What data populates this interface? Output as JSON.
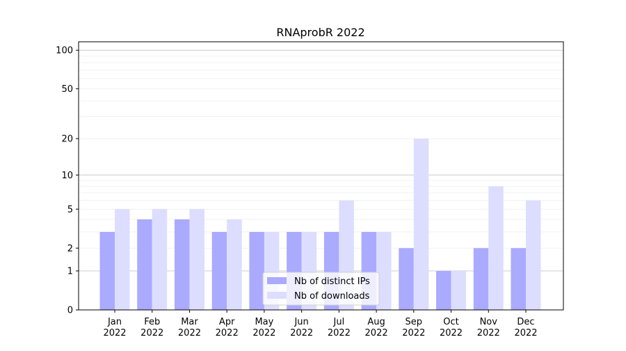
{
  "chart_data": {
    "type": "bar",
    "title": "RNAprobR 2022",
    "xlabel": "",
    "ylabel": "",
    "yscale": "log(1+y)",
    "ylim": [
      0,
      117
    ],
    "yticks": [
      0,
      1,
      2,
      5,
      10,
      20,
      50,
      100
    ],
    "grid": true,
    "legend_position": "bottom-center",
    "categories": [
      "Jan\n2022",
      "Feb\n2022",
      "Mar\n2022",
      "Apr\n2022",
      "May\n2022",
      "Jun\n2022",
      "Jul\n2022",
      "Aug\n2022",
      "Sep\n2022",
      "Oct\n2022",
      "Nov\n2022",
      "Dec\n2022"
    ],
    "series": [
      {
        "name": "Nb of distinct IPs",
        "color": "#aaaaff",
        "values": [
          3,
          4,
          4,
          3,
          3,
          3,
          3,
          3,
          2,
          1,
          2,
          2
        ]
      },
      {
        "name": "Nb of downloads",
        "color": "#ddddff",
        "values": [
          5,
          5,
          5,
          4,
          3,
          3,
          6,
          3,
          20,
          1,
          8,
          6
        ]
      }
    ]
  }
}
